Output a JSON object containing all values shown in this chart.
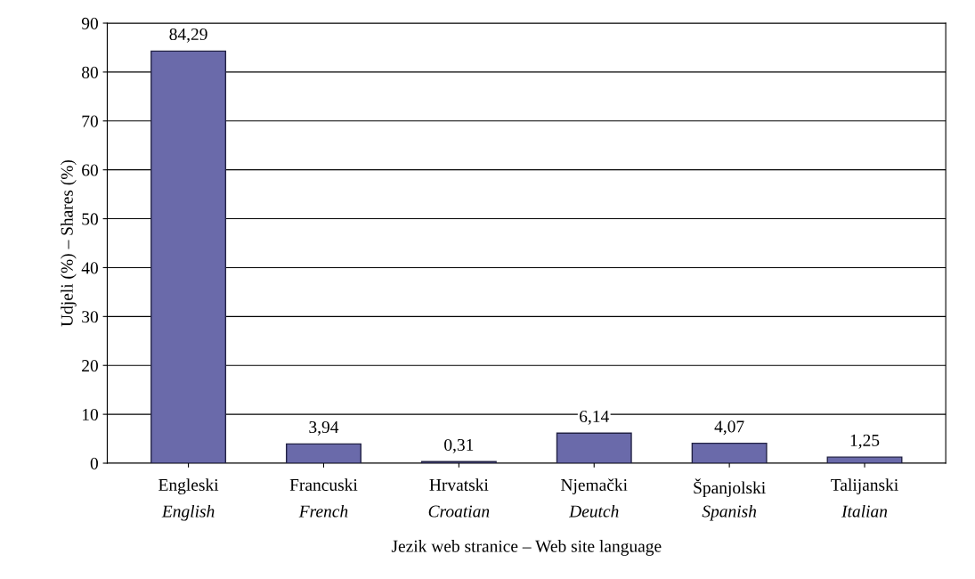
{
  "chart_data": {
    "type": "bar",
    "xlabel": "Jezik web stranice – Web site language",
    "ylabel": "Udjeli (%) – Shares (%)",
    "categories": [
      "Engleski\nEnglish",
      "Francuski\nFrench",
      "Hrvatski\nCroatian",
      "Njemački\nDeutch",
      "Španjolski\nSpanish",
      "Talijanski\nItalian"
    ],
    "values": [
      84.29,
      3.94,
      0.31,
      6.14,
      4.07,
      1.25
    ],
    "value_labels": [
      "84,29",
      "3,94",
      "0,31",
      "6,14",
      "4,07",
      "1,25"
    ],
    "color": "#6a6aaa",
    "ylim": [
      0,
      90
    ],
    "yticks": [
      0,
      10,
      20,
      30,
      40,
      50,
      60,
      70,
      80,
      90
    ],
    "grid": "y"
  }
}
